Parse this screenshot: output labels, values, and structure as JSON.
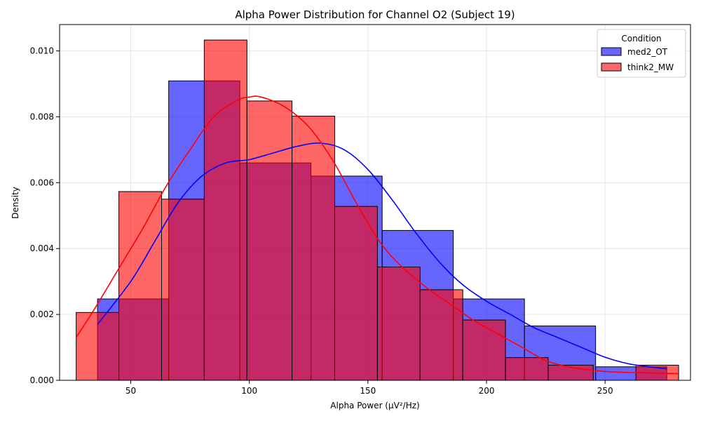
{
  "chart_data": {
    "type": "histogram",
    "title": "Alpha Power Distribution for Channel O2 (Subject 19)",
    "xlabel": "Alpha Power (μV²/Hz)",
    "ylabel": "Density",
    "xlim": [
      20,
      286
    ],
    "ylim": [
      0,
      0.0108
    ],
    "xticks": [
      50,
      100,
      150,
      200,
      250
    ],
    "xtick_labels": [
      "50",
      "100",
      "150",
      "200",
      "250"
    ],
    "yticks": [
      0,
      0.002,
      0.004,
      0.006,
      0.008,
      0.01
    ],
    "ytick_labels": [
      "0.000",
      "0.002",
      "0.004",
      "0.006",
      "0.008",
      "0.010"
    ],
    "grid": true,
    "legend": {
      "title": "Condition",
      "placement": "top-right"
    },
    "series": [
      {
        "name": "med2_OT",
        "color": "#0000ff",
        "bins": [
          {
            "x0": 36,
            "x1": 66,
            "value": 0.00247
          },
          {
            "x0": 66,
            "x1": 96,
            "value": 0.00909
          },
          {
            "x0": 96,
            "x1": 126,
            "value": 0.0066
          },
          {
            "x0": 126,
            "x1": 156,
            "value": 0.0062
          },
          {
            "x0": 156,
            "x1": 186,
            "value": 0.00455
          },
          {
            "x0": 186,
            "x1": 216,
            "value": 0.00247
          },
          {
            "x0": 216,
            "x1": 246,
            "value": 0.00165
          },
          {
            "x0": 246,
            "x1": 276,
            "value": 0.00041
          }
        ],
        "kde": {
          "x": [
            36,
            50,
            60,
            70,
            80,
            90,
            100,
            110,
            120,
            130,
            140,
            150,
            160,
            170,
            180,
            190,
            200,
            210,
            220,
            230,
            240,
            250,
            260,
            270,
            276
          ],
          "y": [
            0.0017,
            0.003,
            0.0042,
            0.0054,
            0.0062,
            0.0066,
            0.0067,
            0.0069,
            0.0071,
            0.0072,
            0.007,
            0.0064,
            0.0055,
            0.0045,
            0.0036,
            0.0029,
            0.0024,
            0.002,
            0.0016,
            0.0013,
            0.001,
            0.0007,
            0.0005,
            0.0004,
            0.00035
          ]
        }
      },
      {
        "name": "think2_MW",
        "color": "#ff0000",
        "bins": [
          {
            "x0": 27,
            "x1": 45,
            "value": 0.00206
          },
          {
            "x0": 45,
            "x1": 63,
            "value": 0.00573
          },
          {
            "x0": 63,
            "x1": 81,
            "value": 0.0055
          },
          {
            "x0": 81,
            "x1": 99,
            "value": 0.01033
          },
          {
            "x0": 99,
            "x1": 118,
            "value": 0.00848
          },
          {
            "x0": 118,
            "x1": 136,
            "value": 0.00802
          },
          {
            "x0": 136,
            "x1": 154,
            "value": 0.00528
          },
          {
            "x0": 154,
            "x1": 172,
            "value": 0.00344
          },
          {
            "x0": 172,
            "x1": 190,
            "value": 0.00275
          },
          {
            "x0": 190,
            "x1": 208,
            "value": 0.00183
          },
          {
            "x0": 208,
            "x1": 226,
            "value": 0.00069
          },
          {
            "x0": 226,
            "x1": 245,
            "value": 0.00046
          },
          {
            "x0": 245,
            "x1": 263,
            "value": 0.0
          },
          {
            "x0": 263,
            "x1": 281,
            "value": 0.00046
          }
        ],
        "kde": {
          "x": [
            27,
            35,
            45,
            55,
            65,
            75,
            85,
            95,
            100,
            105,
            115,
            125,
            135,
            145,
            155,
            165,
            175,
            185,
            195,
            205,
            215,
            225,
            235,
            245,
            255,
            265,
            281
          ],
          "y": [
            0.0013,
            0.0022,
            0.0034,
            0.0046,
            0.0059,
            0.007,
            0.008,
            0.0085,
            0.0086,
            0.0086,
            0.0083,
            0.0077,
            0.0067,
            0.0054,
            0.0042,
            0.0034,
            0.0028,
            0.0023,
            0.0018,
            0.0014,
            0.001,
            0.0006,
            0.0004,
            0.0003,
            0.00025,
            0.00023,
            0.0002
          ]
        }
      }
    ]
  }
}
